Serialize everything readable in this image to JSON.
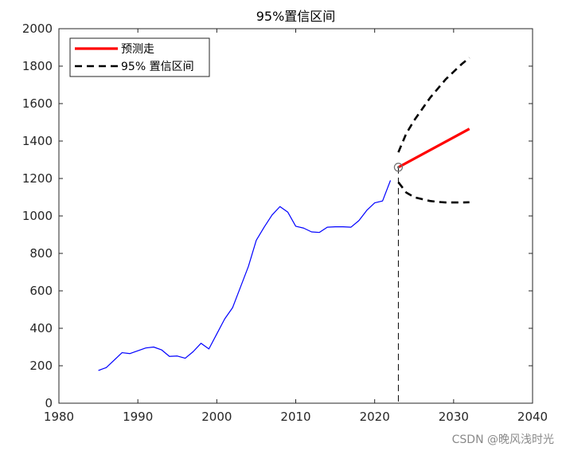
{
  "chart_data": {
    "type": "line",
    "title": "95%置信区间",
    "xlabel": "",
    "ylabel": "",
    "xlim": [
      1980,
      2040
    ],
    "ylim": [
      0,
      2000
    ],
    "xticks": [
      1980,
      1990,
      2000,
      2010,
      2020,
      2030,
      2040
    ],
    "yticks": [
      0,
      200,
      400,
      600,
      800,
      1000,
      1200,
      1400,
      1600,
      1800,
      2000
    ],
    "grid": false,
    "legend_position": "top-left",
    "colors": {
      "observed": "#0000ff",
      "forecast": "#ff0000",
      "ci": "#000000",
      "marker": "#6e6e6e",
      "axis": "#262626"
    },
    "legend": [
      {
        "label": "预测走",
        "style": "solid",
        "color": "#ff0000"
      },
      {
        "label": "95% 置信区间",
        "style": "dashed",
        "color": "#000000"
      }
    ],
    "series": [
      {
        "style": "solid",
        "color": "#0000ff",
        "points": [
          [
            1985,
            175
          ],
          [
            1986,
            190
          ],
          [
            1987,
            230
          ],
          [
            1988,
            270
          ],
          [
            1989,
            265
          ],
          [
            1990,
            280
          ],
          [
            1991,
            295
          ],
          [
            1992,
            300
          ],
          [
            1993,
            285
          ],
          [
            1994,
            250
          ],
          [
            1995,
            252
          ],
          [
            1996,
            240
          ],
          [
            1997,
            275
          ],
          [
            1998,
            320
          ],
          [
            1999,
            290
          ],
          [
            2000,
            370
          ],
          [
            2001,
            450
          ],
          [
            2002,
            510
          ],
          [
            2003,
            620
          ],
          [
            2004,
            730
          ],
          [
            2005,
            870
          ],
          [
            2006,
            940
          ],
          [
            2007,
            1005
          ],
          [
            2008,
            1050
          ],
          [
            2009,
            1020
          ],
          [
            2010,
            945
          ],
          [
            2011,
            935
          ],
          [
            2012,
            915
          ],
          [
            2013,
            912
          ],
          [
            2014,
            940
          ],
          [
            2015,
            942
          ],
          [
            2016,
            942
          ],
          [
            2017,
            940
          ],
          [
            2018,
            975
          ],
          [
            2019,
            1030
          ],
          [
            2020,
            1070
          ],
          [
            2021,
            1080
          ],
          [
            2022,
            1190
          ]
        ]
      },
      {
        "name": "预测走",
        "style": "solid",
        "color": "#ff0000",
        "points": [
          [
            2023,
            1260
          ],
          [
            2032,
            1465
          ]
        ]
      },
      {
        "name": "95% 置信区间",
        "style": "dashed",
        "color": "#000000",
        "points": [
          [
            2023,
            1340
          ],
          [
            2024,
            1440
          ],
          [
            2025,
            1510
          ],
          [
            2026,
            1570
          ],
          [
            2027,
            1630
          ],
          [
            2028,
            1680
          ],
          [
            2029,
            1730
          ],
          [
            2030,
            1770
          ],
          [
            2031,
            1810
          ],
          [
            2032,
            1845
          ]
        ]
      },
      {
        "style": "dashed",
        "color": "#000000",
        "points": [
          [
            2023,
            1180
          ],
          [
            2024,
            1125
          ],
          [
            2025,
            1100
          ],
          [
            2026,
            1090
          ],
          [
            2027,
            1080
          ],
          [
            2028,
            1075
          ],
          [
            2029,
            1072
          ],
          [
            2030,
            1072
          ],
          [
            2031,
            1072
          ],
          [
            2032,
            1073
          ]
        ]
      }
    ],
    "forecast_marker": {
      "x": 2023,
      "y": 1260
    },
    "vertical_dashed_line": {
      "x": 2023,
      "y_from": 0,
      "y_to": 1260
    }
  },
  "watermark": "CSDN @晚风浅时光"
}
